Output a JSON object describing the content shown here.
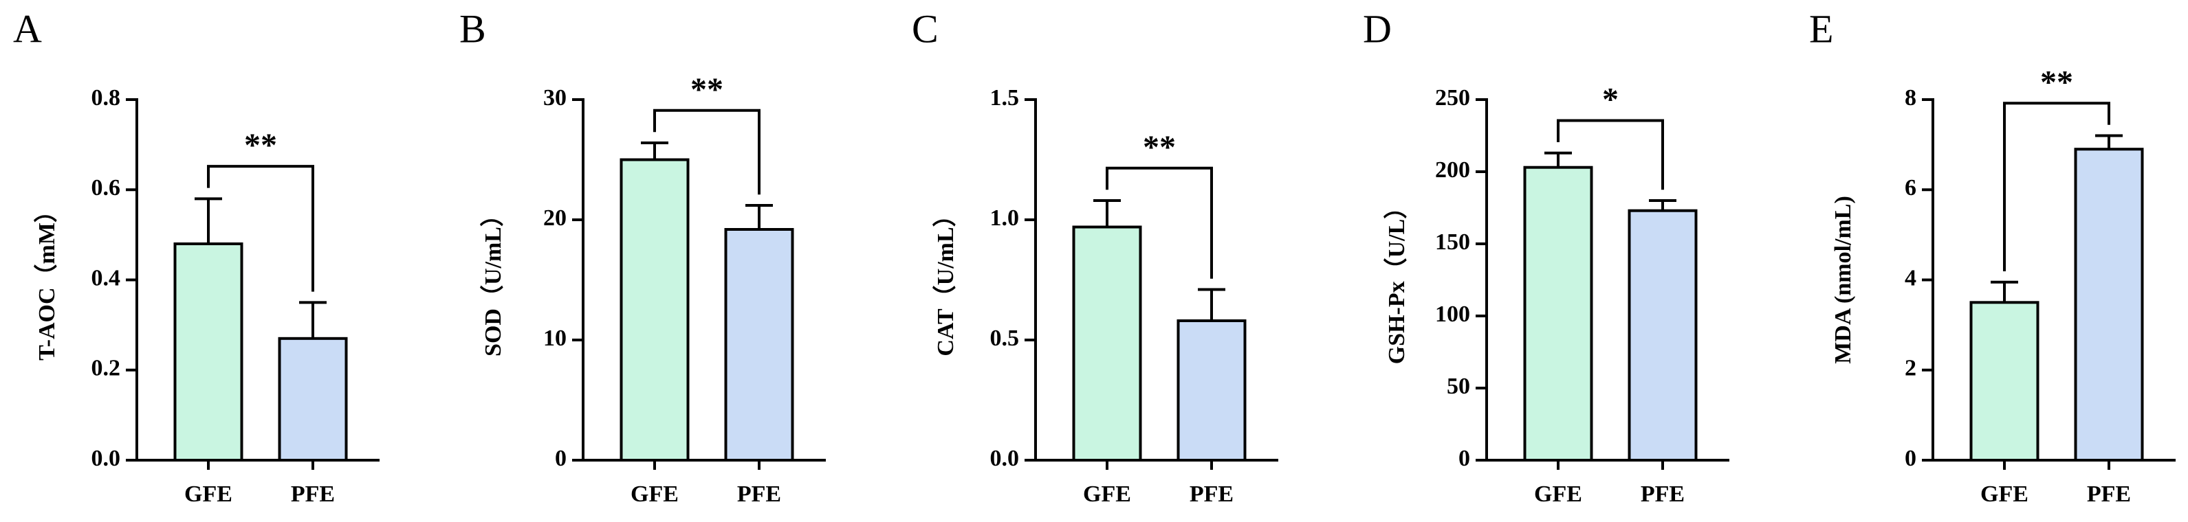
{
  "chart_data": [
    {
      "type": "bar",
      "panel": "A",
      "ylabel": "T-AOC（mM）",
      "categories": [
        "GFE",
        "PFE"
      ],
      "values": [
        0.48,
        0.27
      ],
      "errors": [
        0.1,
        0.08
      ],
      "colors": [
        "#c9f5e1",
        "#cadcf6"
      ],
      "ylim": [
        0,
        0.8
      ],
      "yticks": [
        {
          "value": 0,
          "label": "0.0"
        },
        0.2,
        0.4,
        0.6,
        0.8
      ],
      "significance": "**"
    },
    {
      "type": "bar",
      "panel": "B",
      "ylabel": "SOD（U/mL）",
      "categories": [
        "GFE",
        "PFE"
      ],
      "values": [
        25.0,
        19.2
      ],
      "errors": [
        1.4,
        2.0
      ],
      "colors": [
        "#c9f5e1",
        "#cadcf6"
      ],
      "ylim": [
        0,
        30
      ],
      "yticks": [
        0,
        10,
        20,
        30
      ],
      "significance": "**"
    },
    {
      "type": "bar",
      "panel": "C",
      "ylabel": "CAT（U/mL）",
      "categories": [
        "GFE",
        "PFE"
      ],
      "values": [
        0.97,
        0.58
      ],
      "errors": [
        0.11,
        0.13
      ],
      "colors": [
        "#c9f5e1",
        "#cadcf6"
      ],
      "ylim": [
        0,
        1.5
      ],
      "yticks": [
        {
          "value": 0,
          "label": "0.0"
        },
        0.5,
        {
          "value": 1,
          "label": "1.0"
        },
        1.5
      ],
      "significance": "**"
    },
    {
      "type": "bar",
      "panel": "D",
      "ylabel": "GSH-Px（U/L）",
      "categories": [
        "GFE",
        "PFE"
      ],
      "values": [
        203,
        173
      ],
      "errors": [
        10,
        7
      ],
      "colors": [
        "#c9f5e1",
        "#cadcf6"
      ],
      "ylim": [
        0,
        250
      ],
      "yticks": [
        0,
        50,
        100,
        150,
        200,
        250
      ],
      "significance": "*"
    },
    {
      "type": "bar",
      "panel": "E",
      "ylabel": "MDA (nmol/mL)",
      "categories": [
        "GFE",
        "PFE"
      ],
      "values": [
        3.5,
        6.9
      ],
      "errors": [
        0.45,
        0.3
      ],
      "colors": [
        "#c9f5e1",
        "#cadcf6"
      ],
      "ylim": [
        0,
        8
      ],
      "yticks": [
        0,
        2,
        4,
        6,
        8
      ],
      "significance": "**"
    }
  ]
}
